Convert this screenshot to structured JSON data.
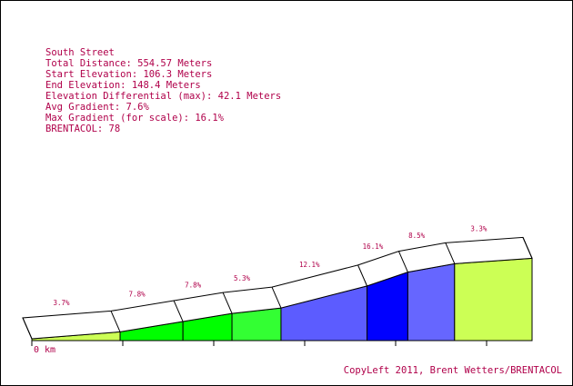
{
  "info": {
    "lines": [
      "South Street",
      "Total Distance: 554.57 Meters",
      "Start Elevation: 106.3 Meters",
      "End Elevation: 148.4 Meters",
      "Elevation Differential (max): 42.1 Meters",
      "Avg Gradient: 7.6%",
      "Max Gradient (for scale): 16.1%",
      "BRENTACOL: 78"
    ]
  },
  "credit": "CopyLeft 2011, Brent Wetters/BRENTACOL",
  "chart_data": {
    "type": "area",
    "title": "South Street",
    "x_unit": "m",
    "y_unit": "m",
    "total_distance_m": 554.57,
    "start_elevation_m": 106.3,
    "end_elevation_m": 148.4,
    "x_tick_labels": [
      "0 km"
    ],
    "x_tick_count": 6,
    "segments": [
      {
        "x_start": 0,
        "x_end": 55.46,
        "gradient_pct": 3.7,
        "gradient_label": "3.7%",
        "color": "#ccff55"
      },
      {
        "x_start": 55.46,
        "x_end": 94.96,
        "gradient_pct": 7.8,
        "gradient_label": "7.8%",
        "color": "#00ff00"
      },
      {
        "x_start": 94.96,
        "x_end": 125.78,
        "gradient_pct": 7.8,
        "gradient_label": "7.8%",
        "color": "#00ff00"
      },
      {
        "x_start": 125.78,
        "x_end": 156.59,
        "gradient_pct": 5.3,
        "gradient_label": "5.3%",
        "color": "#33ff33"
      },
      {
        "x_start": 156.59,
        "x_end": 210.64,
        "gradient_pct": 12.1,
        "gradient_label": "12.1%",
        "color": "#5c5cff"
      },
      {
        "x_start": 210.64,
        "x_end": 236.27,
        "gradient_pct": 16.1,
        "gradient_label": "16.1%",
        "color": "#0000ff"
      },
      {
        "x_start": 236.27,
        "x_end": 265.66,
        "gradient_pct": 8.5,
        "gradient_label": "8.5%",
        "color": "#6666ff"
      },
      {
        "x_start": 265.66,
        "x_end": 314.35,
        "gradient_pct": 3.3,
        "gradient_label": "3.3%",
        "color": "#ccff55"
      }
    ],
    "profile_points": [
      {
        "x": 0,
        "elevation": 106.3
      },
      {
        "x": 55.46,
        "elevation": 108.35
      },
      {
        "x": 94.96,
        "elevation": 111.43
      },
      {
        "x": 125.78,
        "elevation": 113.84
      },
      {
        "x": 156.59,
        "elevation": 115.47
      },
      {
        "x": 210.64,
        "elevation": 122.01
      },
      {
        "x": 236.27,
        "elevation": 126.14
      },
      {
        "x": 265.66,
        "elevation": 128.64
      },
      {
        "x": 314.35,
        "elevation": 130.25
      }
    ]
  }
}
